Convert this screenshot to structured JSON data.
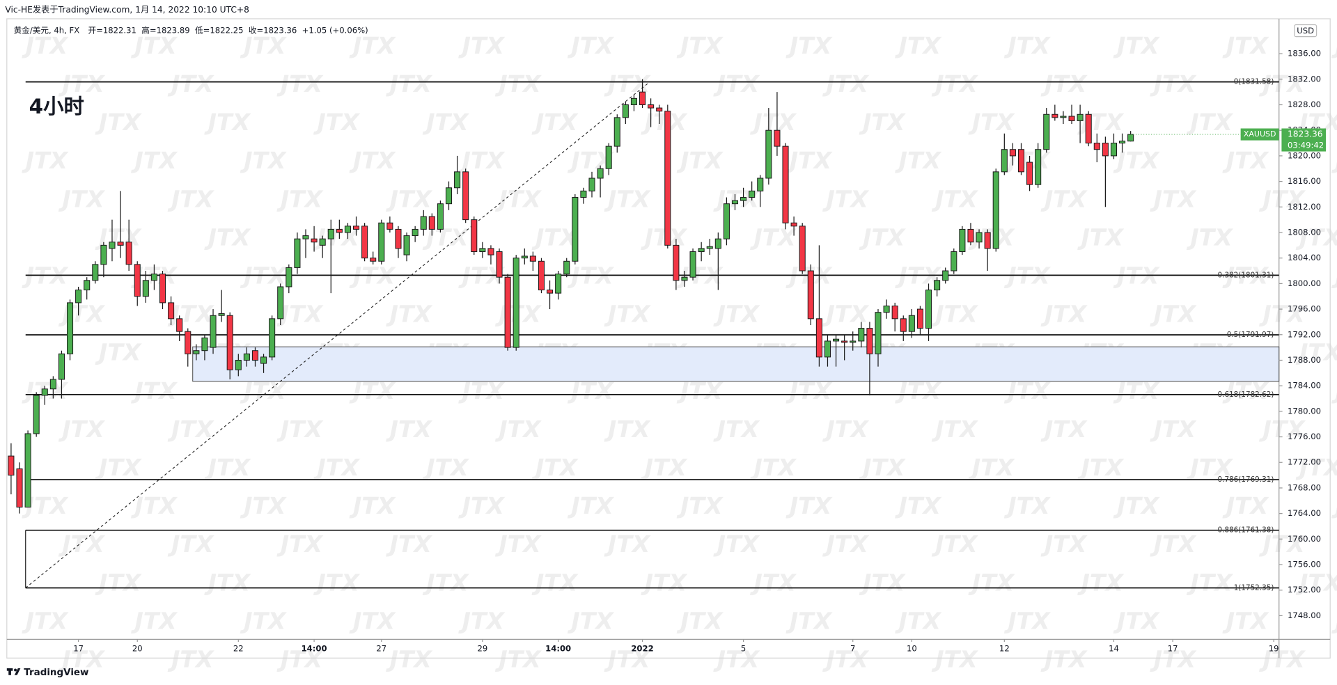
{
  "chart_data": {
    "type": "candlestick",
    "byline": "Vic-HE发表于TradingView.com, 1月 14, 2022 10:10 UTC+8",
    "legend": [
      "黄金/美元, 4h, FX",
      "开=1822.31",
      "高=1823.89",
      "低=1822.25",
      "收=1823.36",
      "+1.05 (+0.06%)"
    ],
    "title": "4小时",
    "currency": "USD",
    "brand": "TradingView",
    "watermark": "JTX",
    "colors": {
      "up": "#4caf50",
      "down": "#f23645",
      "border": "#1a1a1a",
      "zone": "#e3ebfb"
    },
    "grid": false,
    "ylim": [
      1744.3,
      1840.4
    ],
    "yticks": [
      {
        "value": 1748,
        "label": "1748.00"
      },
      {
        "value": 1752,
        "label": "1752.00"
      },
      {
        "value": 1756,
        "label": "1756.00"
      },
      {
        "value": 1760,
        "label": "1760.00"
      },
      {
        "value": 1764,
        "label": "1764.00"
      },
      {
        "value": 1768,
        "label": "1768.00"
      },
      {
        "value": 1772,
        "label": "1772.00"
      },
      {
        "value": 1776,
        "label": "1776.00"
      },
      {
        "value": 1780,
        "label": "1780.00"
      },
      {
        "value": 1784,
        "label": "1784.00"
      },
      {
        "value": 1788,
        "label": "1788.00"
      },
      {
        "value": 1792,
        "label": "1792.00"
      },
      {
        "value": 1796,
        "label": "1796.00"
      },
      {
        "value": 1800,
        "label": "1800.00"
      },
      {
        "value": 1804,
        "label": "1804.00"
      },
      {
        "value": 1808,
        "label": "1808.00"
      },
      {
        "value": 1812,
        "label": "1812.00"
      },
      {
        "value": 1816,
        "label": "1816.00"
      },
      {
        "value": 1820,
        "label": "1820.00"
      },
      {
        "value": 1824,
        "label": "1824.00"
      },
      {
        "value": 1828,
        "label": "1828.00"
      },
      {
        "value": 1832,
        "label": "1832.00"
      },
      {
        "value": 1836,
        "label": "1836.00"
      }
    ],
    "fib": [
      {
        "value": 1831.58,
        "label": "0(1831.58)"
      },
      {
        "value": 1801.31,
        "label": "0.382(1801.31)"
      },
      {
        "value": 1791.97,
        "label": "0.5(1791.97)"
      },
      {
        "value": 1782.62,
        "label": "0.618(1782.62)"
      },
      {
        "value": 1769.31,
        "label": "0.786(1769.31)"
      },
      {
        "value": 1761.38,
        "label": "0.886(1761.38)"
      },
      {
        "value": 1752.35,
        "label": "1(1752.35)"
      }
    ],
    "zone": [
      1784.7,
      1790.1
    ],
    "last_price": {
      "symbol": "XAUUSD",
      "value": 1823.36,
      "label": "1823.36",
      "countdown": "03:49:42"
    },
    "categories": [
      null,
      null,
      null,
      null,
      null,
      null,
      null,
      null,
      "17",
      null,
      null,
      null,
      null,
      null,
      null,
      "20",
      null,
      null,
      null,
      null,
      null,
      null,
      null,
      null,
      null,
      null,
      null,
      "22",
      null,
      null,
      null,
      null,
      null,
      null,
      null,
      null,
      "14:00",
      null,
      null,
      null,
      null,
      null,
      null,
      null,
      "27",
      null,
      null,
      null,
      null,
      null,
      null,
      null,
      null,
      null,
      null,
      null,
      "29",
      null,
      null,
      null,
      null,
      null,
      null,
      null,
      null,
      "14:00",
      null,
      null,
      null,
      null,
      null,
      null,
      null,
      null,
      null,
      "2022",
      null,
      null,
      null,
      null,
      null,
      null,
      null,
      null,
      null,
      null,
      null,
      "5",
      null,
      null,
      null,
      null,
      null,
      null,
      null,
      null,
      null,
      null,
      null,
      null,
      "7",
      null,
      null,
      null,
      null,
      null,
      null,
      "10",
      null,
      null,
      null,
      null,
      null,
      null,
      null,
      null,
      null,
      null,
      "12",
      null,
      null,
      null,
      null,
      null,
      null,
      null,
      null,
      null,
      null,
      null,
      null,
      "14",
      null,
      null,
      null,
      null,
      null,
      null,
      "17",
      null,
      null,
      null,
      null,
      null,
      null,
      null,
      null,
      null,
      null,
      null,
      "19"
    ],
    "ohlc": [
      [
        1773,
        1775,
        1767,
        1770
      ],
      [
        1771,
        1772,
        1764,
        1765
      ],
      [
        1765,
        1777,
        1765,
        1776.5
      ],
      [
        1776.5,
        1783,
        1776,
        1782.5
      ],
      [
        1782.5,
        1784,
        1781,
        1783.5
      ],
      [
        1783.5,
        1785.5,
        1782,
        1785
      ],
      [
        1785,
        1789.5,
        1782,
        1789
      ],
      [
        1789,
        1797.5,
        1788,
        1797
      ],
      [
        1797,
        1799.5,
        1795,
        1799
      ],
      [
        1799,
        1801,
        1797.5,
        1800.5
      ],
      [
        1800.5,
        1803.5,
        1800,
        1803
      ],
      [
        1803,
        1806.5,
        1801,
        1806
      ],
      [
        1805.5,
        1810,
        1803.5,
        1806.5
      ],
      [
        1806.5,
        1814.5,
        1804,
        1806
      ],
      [
        1806.5,
        1810,
        1802,
        1803
      ],
      [
        1803,
        1803.5,
        1796.5,
        1798
      ],
      [
        1798,
        1802,
        1797,
        1800.5
      ],
      [
        1800.5,
        1803,
        1799,
        1801.5
      ],
      [
        1801.5,
        1802,
        1796,
        1797
      ],
      [
        1797,
        1798,
        1793.5,
        1794.5
      ],
      [
        1794.5,
        1795,
        1791,
        1792.5
      ],
      [
        1792.5,
        1793,
        1787,
        1789
      ],
      [
        1789,
        1790.5,
        1788,
        1789.5
      ],
      [
        1789.5,
        1792,
        1788,
        1791.5
      ],
      [
        1790,
        1796,
        1789,
        1795
      ],
      [
        1795,
        1799,
        1794,
        1795.3
      ],
      [
        1795,
        1795.5,
        1785,
        1786.5
      ],
      [
        1786.5,
        1789,
        1785.5,
        1788
      ],
      [
        1788,
        1790,
        1787,
        1789
      ],
      [
        1789.5,
        1790,
        1787,
        1788
      ],
      [
        1787.5,
        1789,
        1786,
        1788.5
      ],
      [
        1788.5,
        1795,
        1788,
        1794.5
      ],
      [
        1794.5,
        1800,
        1793.5,
        1799.5
      ],
      [
        1799.5,
        1803,
        1798.5,
        1802.5
      ],
      [
        1802.5,
        1808,
        1801.5,
        1807
      ],
      [
        1807,
        1808.5,
        1804,
        1807.5
      ],
      [
        1807,
        1809,
        1805,
        1806.5
      ],
      [
        1806,
        1807.5,
        1804,
        1807
      ],
      [
        1807,
        1810,
        1798.5,
        1808.5
      ],
      [
        1808.5,
        1810,
        1807,
        1808
      ],
      [
        1808,
        1809.5,
        1807,
        1809
      ],
      [
        1809,
        1810.5,
        1807.5,
        1808.5
      ],
      [
        1809,
        1809.5,
        1803.5,
        1804
      ],
      [
        1804,
        1805,
        1803,
        1803.5
      ],
      [
        1803.5,
        1810,
        1803,
        1809.5
      ],
      [
        1809.5,
        1810.5,
        1808,
        1808.5
      ],
      [
        1808.5,
        1809,
        1804,
        1805.5
      ],
      [
        1804.5,
        1808,
        1803.5,
        1807.5
      ],
      [
        1807.5,
        1809,
        1806.5,
        1808.5
      ],
      [
        1808.5,
        1811.5,
        1807.5,
        1810.5
      ],
      [
        1810.5,
        1811,
        1807.5,
        1808.5
      ],
      [
        1808.5,
        1813,
        1808,
        1812.5
      ],
      [
        1812.5,
        1816,
        1811.5,
        1815
      ],
      [
        1815,
        1820,
        1814,
        1817.5
      ],
      [
        1817.5,
        1818,
        1809.5,
        1810
      ],
      [
        1810,
        1810.5,
        1804.5,
        1805
      ],
      [
        1805,
        1806.5,
        1804,
        1805.5
      ],
      [
        1805.5,
        1806,
        1803,
        1804.5
      ],
      [
        1805,
        1805.5,
        1800,
        1801
      ],
      [
        1801,
        1801.5,
        1789.5,
        1790
      ],
      [
        1790,
        1804.5,
        1789.5,
        1804
      ],
      [
        1804,
        1805.5,
        1803,
        1804.3
      ],
      [
        1804.3,
        1805,
        1802,
        1803.5
      ],
      [
        1803.5,
        1804,
        1798.5,
        1799
      ],
      [
        1799,
        1800.5,
        1796,
        1798.5
      ],
      [
        1798.5,
        1802,
        1797.5,
        1801.5
      ],
      [
        1801.5,
        1804,
        1801,
        1803.5
      ],
      [
        1803.5,
        1814,
        1803,
        1813.5
      ],
      [
        1813.5,
        1815,
        1812.5,
        1814.5
      ],
      [
        1814.5,
        1817.5,
        1813.5,
        1816.5
      ],
      [
        1816.5,
        1818.5,
        1813.5,
        1818
      ],
      [
        1818,
        1822,
        1817,
        1821.5
      ],
      [
        1821.5,
        1826.5,
        1820.5,
        1826
      ],
      [
        1826,
        1828.5,
        1825,
        1828
      ],
      [
        1828,
        1829.5,
        1827,
        1829
      ],
      [
        1830,
        1832,
        1827.5,
        1828
      ],
      [
        1828,
        1829,
        1824.5,
        1827.5
      ],
      [
        1827.5,
        1828,
        1825,
        1827
      ],
      [
        1827,
        1828,
        1805.5,
        1806
      ],
      [
        1806,
        1807,
        1799,
        1800.5
      ],
      [
        1800.5,
        1802,
        1799.5,
        1801
      ],
      [
        1801,
        1805.5,
        1800.5,
        1805
      ],
      [
        1805,
        1806.5,
        1803.5,
        1805.5
      ],
      [
        1805.5,
        1807,
        1804.5,
        1805.8
      ],
      [
        1805.5,
        1808,
        1799,
        1807
      ],
      [
        1807,
        1813.5,
        1806,
        1812.5
      ],
      [
        1812.5,
        1814,
        1811.5,
        1813
      ],
      [
        1813,
        1815,
        1812,
        1813.5
      ],
      [
        1813.5,
        1816,
        1813,
        1814.5
      ],
      [
        1814.5,
        1817,
        1812,
        1816.5
      ],
      [
        1816.5,
        1827.5,
        1815.5,
        1824
      ],
      [
        1824,
        1830,
        1820,
        1821.5
      ],
      [
        1821.5,
        1822,
        1808.5,
        1809.5
      ],
      [
        1809.5,
        1810.5,
        1807.5,
        1809
      ],
      [
        1809,
        1809.5,
        1801.5,
        1802
      ],
      [
        1802,
        1803,
        1793.5,
        1794.5
      ],
      [
        1794.5,
        1806,
        1787,
        1788.5
      ],
      [
        1788.5,
        1792,
        1787,
        1791
      ],
      [
        1791,
        1792,
        1787,
        1791.3
      ],
      [
        1791,
        1792,
        1788,
        1790.8
      ],
      [
        1790.8,
        1792.5,
        1789.5,
        1791
      ],
      [
        1791,
        1794,
        1790,
        1793
      ],
      [
        1793,
        1794,
        1782.5,
        1789
      ],
      [
        1789,
        1796,
        1787,
        1795.5
      ],
      [
        1795.5,
        1797.5,
        1794.5,
        1796.5
      ],
      [
        1796.5,
        1797,
        1792.5,
        1794.5
      ],
      [
        1794.5,
        1795,
        1791,
        1792.5
      ],
      [
        1792.5,
        1796,
        1791.5,
        1795
      ],
      [
        1796,
        1796.5,
        1792,
        1793
      ],
      [
        1793,
        1800,
        1791,
        1799
      ],
      [
        1799,
        1801,
        1798,
        1800.5
      ],
      [
        1800.5,
        1802.5,
        1800,
        1802
      ],
      [
        1802,
        1805.5,
        1801.5,
        1805
      ],
      [
        1805,
        1809,
        1804.5,
        1808.5
      ],
      [
        1808.5,
        1809.5,
        1806,
        1806.5
      ],
      [
        1806.5,
        1808.5,
        1805.5,
        1808
      ],
      [
        1808,
        1808.5,
        1802,
        1805.5
      ],
      [
        1805.5,
        1818,
        1805,
        1817.5
      ],
      [
        1817.5,
        1823.5,
        1817,
        1821
      ],
      [
        1821,
        1822,
        1818.5,
        1820
      ],
      [
        1821,
        1822,
        1817,
        1817.5
      ],
      [
        1819,
        1820,
        1814.5,
        1815.5
      ],
      [
        1815.5,
        1822,
        1815,
        1821
      ],
      [
        1821,
        1827.5,
        1820.5,
        1826.5
      ],
      [
        1826.5,
        1828,
        1825.5,
        1826
      ],
      [
        1826,
        1827,
        1825,
        1826.2
      ],
      [
        1826.2,
        1828,
        1825,
        1825.5
      ],
      [
        1825.5,
        1828,
        1822,
        1826.5
      ],
      [
        1826.5,
        1827,
        1821.5,
        1822
      ],
      [
        1822,
        1823.5,
        1819,
        1821
      ],
      [
        1822,
        1823,
        1812,
        1820
      ],
      [
        1820,
        1823.5,
        1819.5,
        1822
      ],
      [
        1822,
        1823.5,
        1820.5,
        1822.31
      ],
      [
        1822.31,
        1823.89,
        1822.25,
        1823.36
      ],
      null,
      null,
      null,
      null,
      null,
      null,
      null,
      null,
      null,
      null,
      null,
      null,
      null,
      null,
      null,
      null,
      null
    ]
  }
}
